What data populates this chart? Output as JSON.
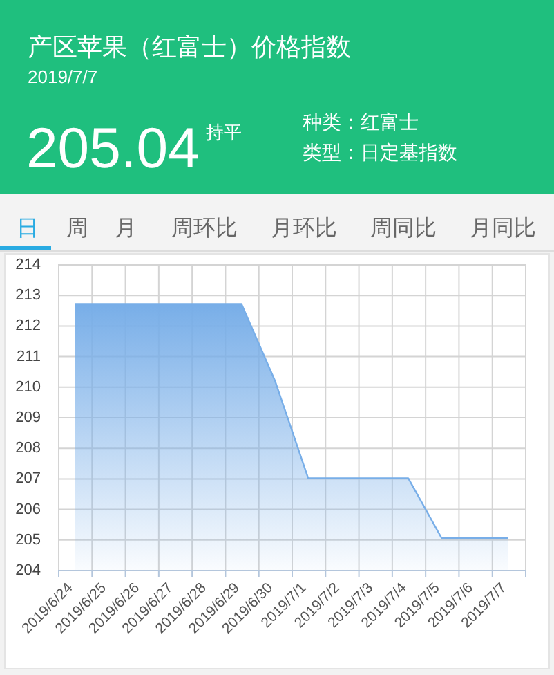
{
  "chart_data": {
    "type": "area",
    "title": "产区苹果（红富士）价格指数",
    "subtitle": "2019/7/7",
    "annotations": [
      "205.04",
      "持平",
      "种类：红富士",
      "类型：日定基指数",
      "日",
      "周",
      "月",
      "周环比",
      "月环比",
      "周同比",
      "月同比"
    ],
    "categories": [
      "2019/6/24",
      "2019/6/25",
      "2019/6/26",
      "2019/6/27",
      "2019/6/28",
      "2019/6/29",
      "2019/6/30",
      "2019/7/1",
      "2019/7/2",
      "2019/7/3",
      "2019/7/4",
      "2019/7/5",
      "2019/7/6",
      "2019/7/7"
    ],
    "values": [
      212.7,
      212.7,
      212.7,
      212.7,
      212.7,
      212.7,
      210.2,
      207.0,
      207.0,
      207.0,
      207.0,
      205.04,
      205.04,
      205.04
    ],
    "color": "#78aee8",
    "ylim": [
      204,
      214
    ],
    "yticks": [
      204,
      205,
      206,
      207,
      208,
      209,
      210,
      211,
      212,
      213,
      214
    ],
    "grid": true
  }
}
